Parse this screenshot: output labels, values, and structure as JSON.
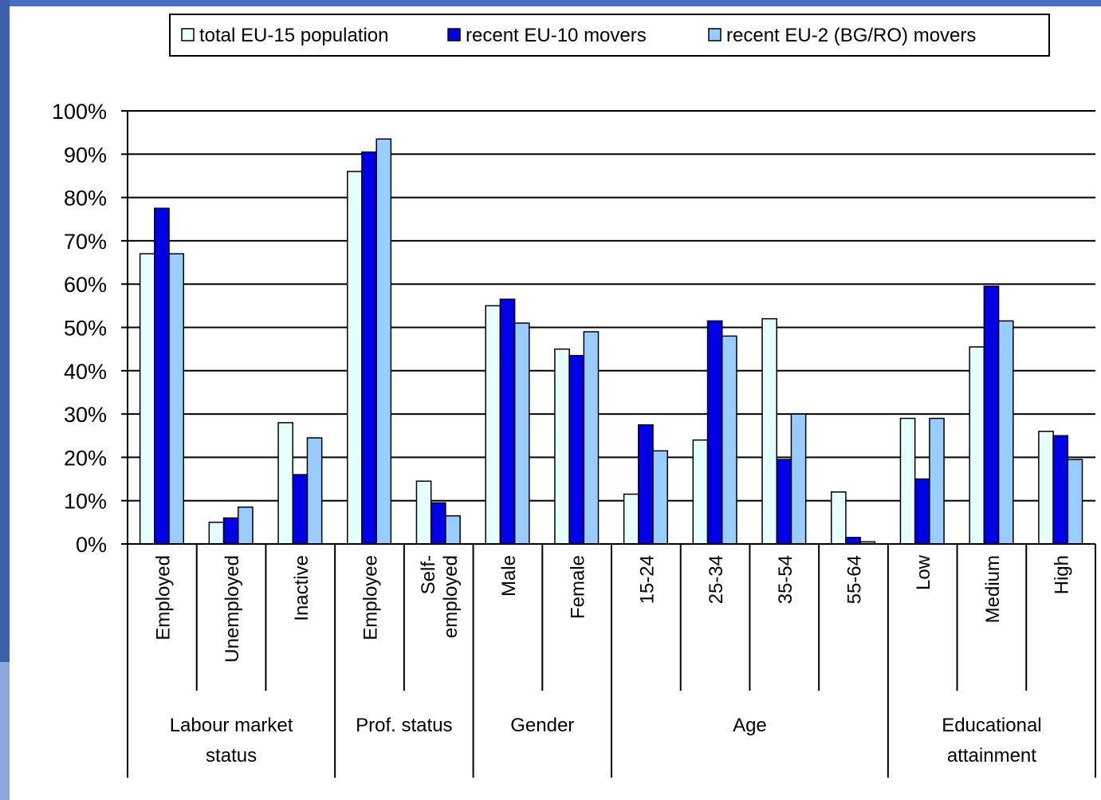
{
  "colors": {
    "series1": "#e6ffff",
    "series2": "#0000e6",
    "series3": "#99ccff",
    "frame_left": "#3d5ea8",
    "frame_top": "#4a6fc0"
  },
  "legend": {
    "entries": [
      "total EU-15 population",
      "recent EU-10 movers",
      "recent EU-2 (BG/RO) movers"
    ],
    "placement": "top"
  },
  "chart_data": {
    "type": "bar",
    "title": "",
    "xlabel": "",
    "ylabel": "",
    "ylim": [
      0,
      100
    ],
    "yticks": [
      0,
      10,
      20,
      30,
      40,
      50,
      60,
      70,
      80,
      90,
      100
    ],
    "ytick_labels": [
      "0%",
      "10%",
      "20%",
      "30%",
      "40%",
      "50%",
      "60%",
      "70%",
      "80%",
      "90%",
      "100%"
    ],
    "grid": true,
    "categories": [
      "Employed",
      "Unemployed",
      "Inactive",
      "Employee",
      "Self-\nemployed",
      "Male",
      "Female",
      "15-24",
      "25-34",
      "35-54",
      "55-64",
      "Low",
      "Medium",
      "High"
    ],
    "groups": [
      {
        "label": "Labour market\nstatus",
        "count": 3
      },
      {
        "label": "Prof. status",
        "count": 2
      },
      {
        "label": "Gender",
        "count": 2
      },
      {
        "label": "Age",
        "count": 4
      },
      {
        "label": "Educational\nattainment",
        "count": 3
      }
    ],
    "series": [
      {
        "name": "total EU-15 population",
        "values": [
          67,
          5,
          28,
          86,
          14.5,
          55,
          45,
          11.5,
          24,
          52,
          12,
          29,
          45.5,
          26
        ]
      },
      {
        "name": "recent EU-10 movers",
        "values": [
          77.5,
          6,
          16,
          90.5,
          9.5,
          56.5,
          43.5,
          27.5,
          51.5,
          19.5,
          1.5,
          15,
          59.5,
          25
        ]
      },
      {
        "name": "recent EU-2 (BG/RO) movers",
        "values": [
          67,
          8.5,
          24.5,
          93.5,
          6.5,
          51,
          49,
          21.5,
          48,
          30,
          0.5,
          29,
          51.5,
          19.5
        ]
      }
    ]
  }
}
